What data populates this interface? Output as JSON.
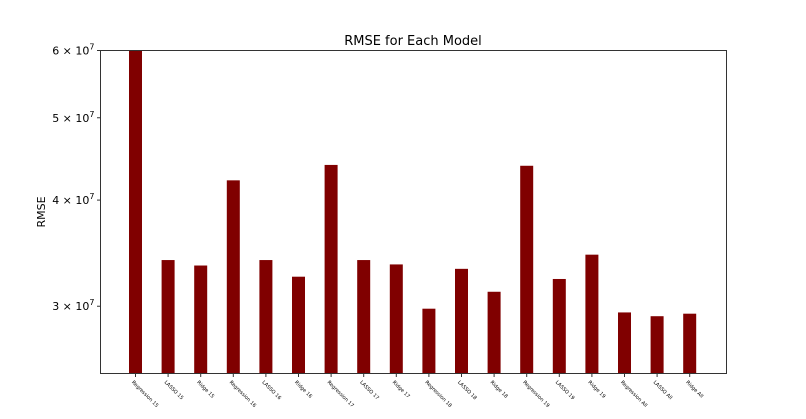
{
  "chart_data": {
    "type": "bar",
    "title": "RMSE for Each Model",
    "xlabel": "",
    "ylabel": "RMSE",
    "yscale": "log",
    "ylim": [
      25000000,
      60000000
    ],
    "yticks": [
      {
        "value": 30000000,
        "label": "3 × 10^7"
      },
      {
        "value": 40000000,
        "label": "4 × 10^7"
      },
      {
        "value": 50000000,
        "label": "5 × 10^7"
      },
      {
        "value": 60000000,
        "label": "6 × 10^7"
      }
    ],
    "grid": false,
    "legend": null,
    "bar_color": "#800000",
    "categories": [
      "Regression 15",
      "LASSO 15",
      "Ridge 15",
      "Regression 16",
      "LASSO 16",
      "Ridge 16",
      "Regression 17",
      "LASSO 17",
      "Ridge 17",
      "Regression 18",
      "LASSO 18",
      "Ridge 18",
      "Regression 19",
      "LASSO 19",
      "Ridge 19",
      "Regression All",
      "LASSO All",
      "Ridge All"
    ],
    "values": [
      60000000,
      34000000,
      33500000,
      42200000,
      34000000,
      32500000,
      44000000,
      34000000,
      33600000,
      29800000,
      33200000,
      31200000,
      43900000,
      32300000,
      34500000,
      29500000,
      29200000,
      29400000
    ]
  }
}
